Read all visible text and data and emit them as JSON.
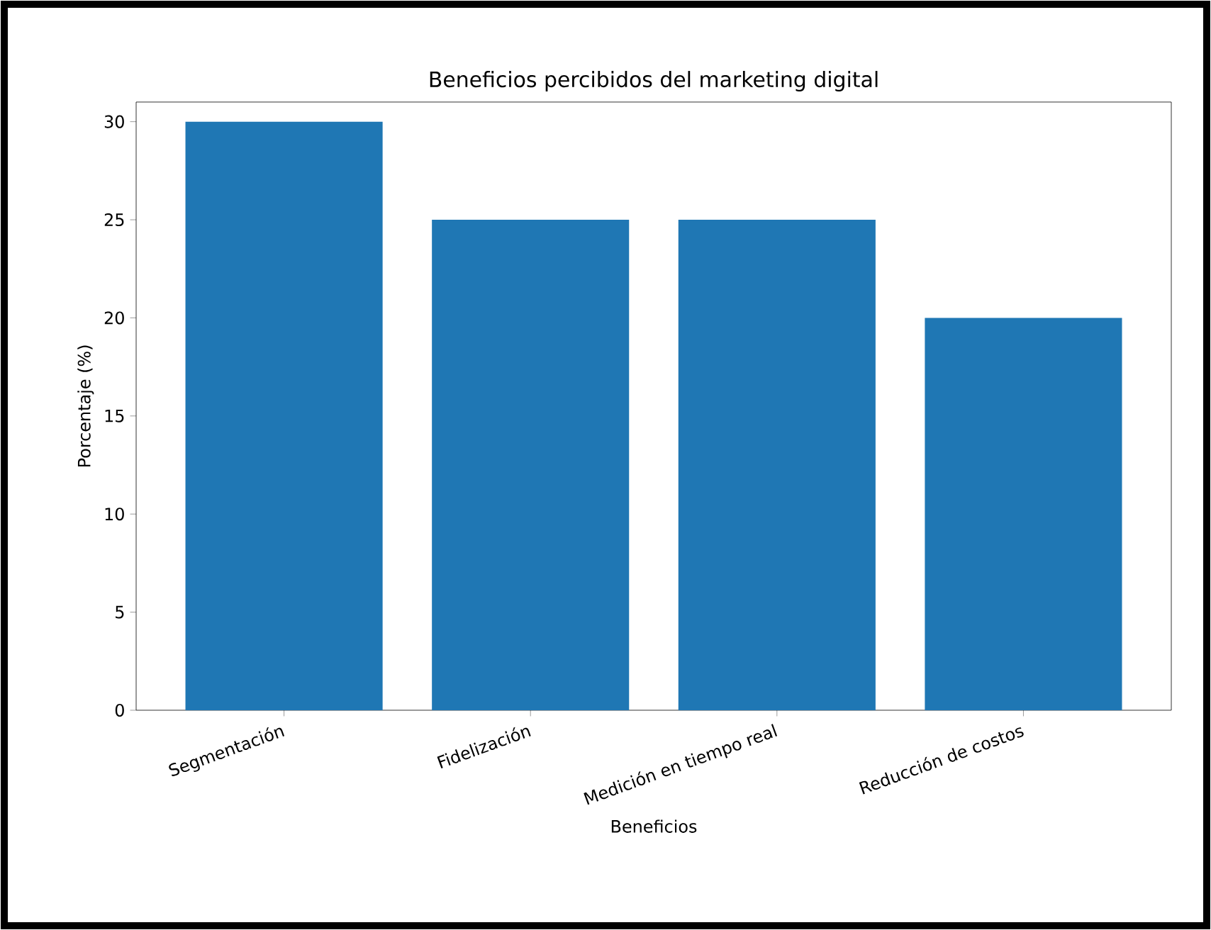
{
  "chart_data": {
    "type": "bar",
    "title": "Beneficios percibidos del marketing digital",
    "xlabel": "Beneficios",
    "ylabel": "Porcentaje (%)",
    "categories": [
      "Segmentación",
      "Fidelización",
      "Medición en tiempo real",
      "Reducción de costos"
    ],
    "values": [
      30,
      25,
      25,
      20
    ],
    "color": "#1f77b4",
    "ylim": [
      0,
      31
    ],
    "yticks": [
      0,
      5,
      10,
      15,
      20,
      25,
      30
    ]
  }
}
